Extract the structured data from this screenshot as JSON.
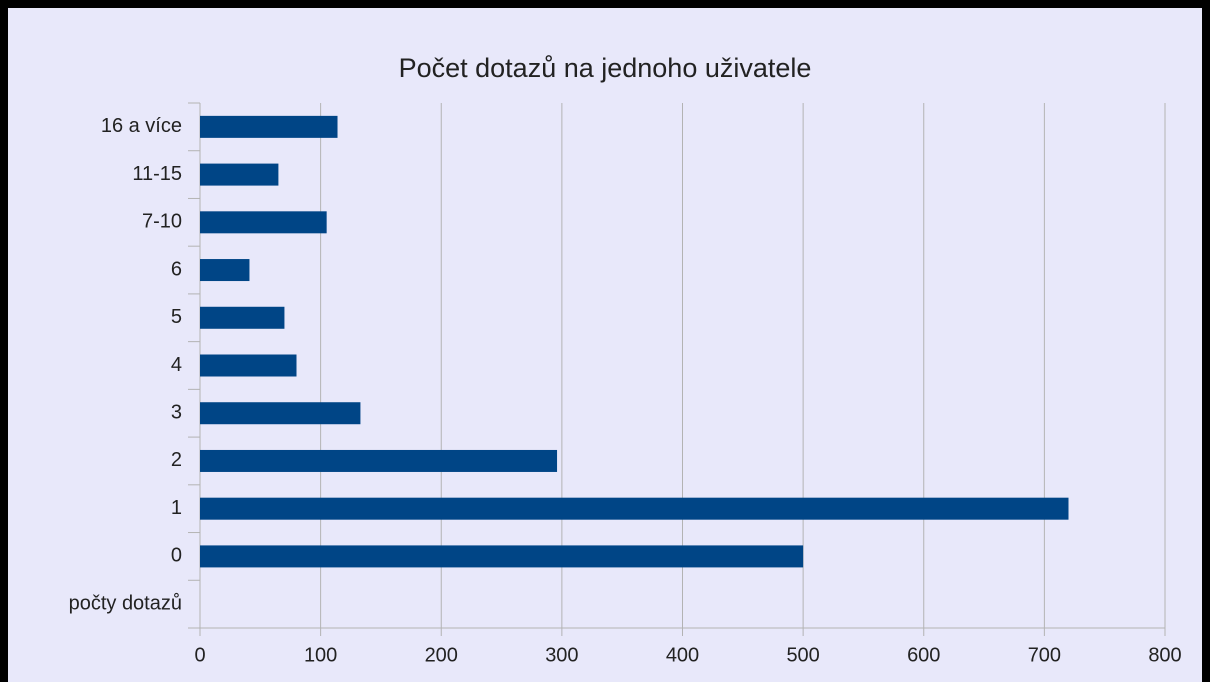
{
  "chart_data": {
    "type": "bar",
    "orientation": "horizontal",
    "title": "Počet dotazů na jednoho uživatele",
    "categories": [
      "počty dotazů",
      "0",
      "1",
      "2",
      "3",
      "4",
      "5",
      "6",
      "7-10",
      "11-15",
      "16 a více"
    ],
    "values": [
      null,
      500,
      720,
      296,
      133,
      80,
      70,
      41,
      105,
      65,
      114
    ],
    "color": "#004586",
    "xlim": [
      0,
      800
    ],
    "xticks": [
      0,
      100,
      200,
      300,
      400,
      500,
      600,
      700,
      800
    ],
    "grid": true
  }
}
